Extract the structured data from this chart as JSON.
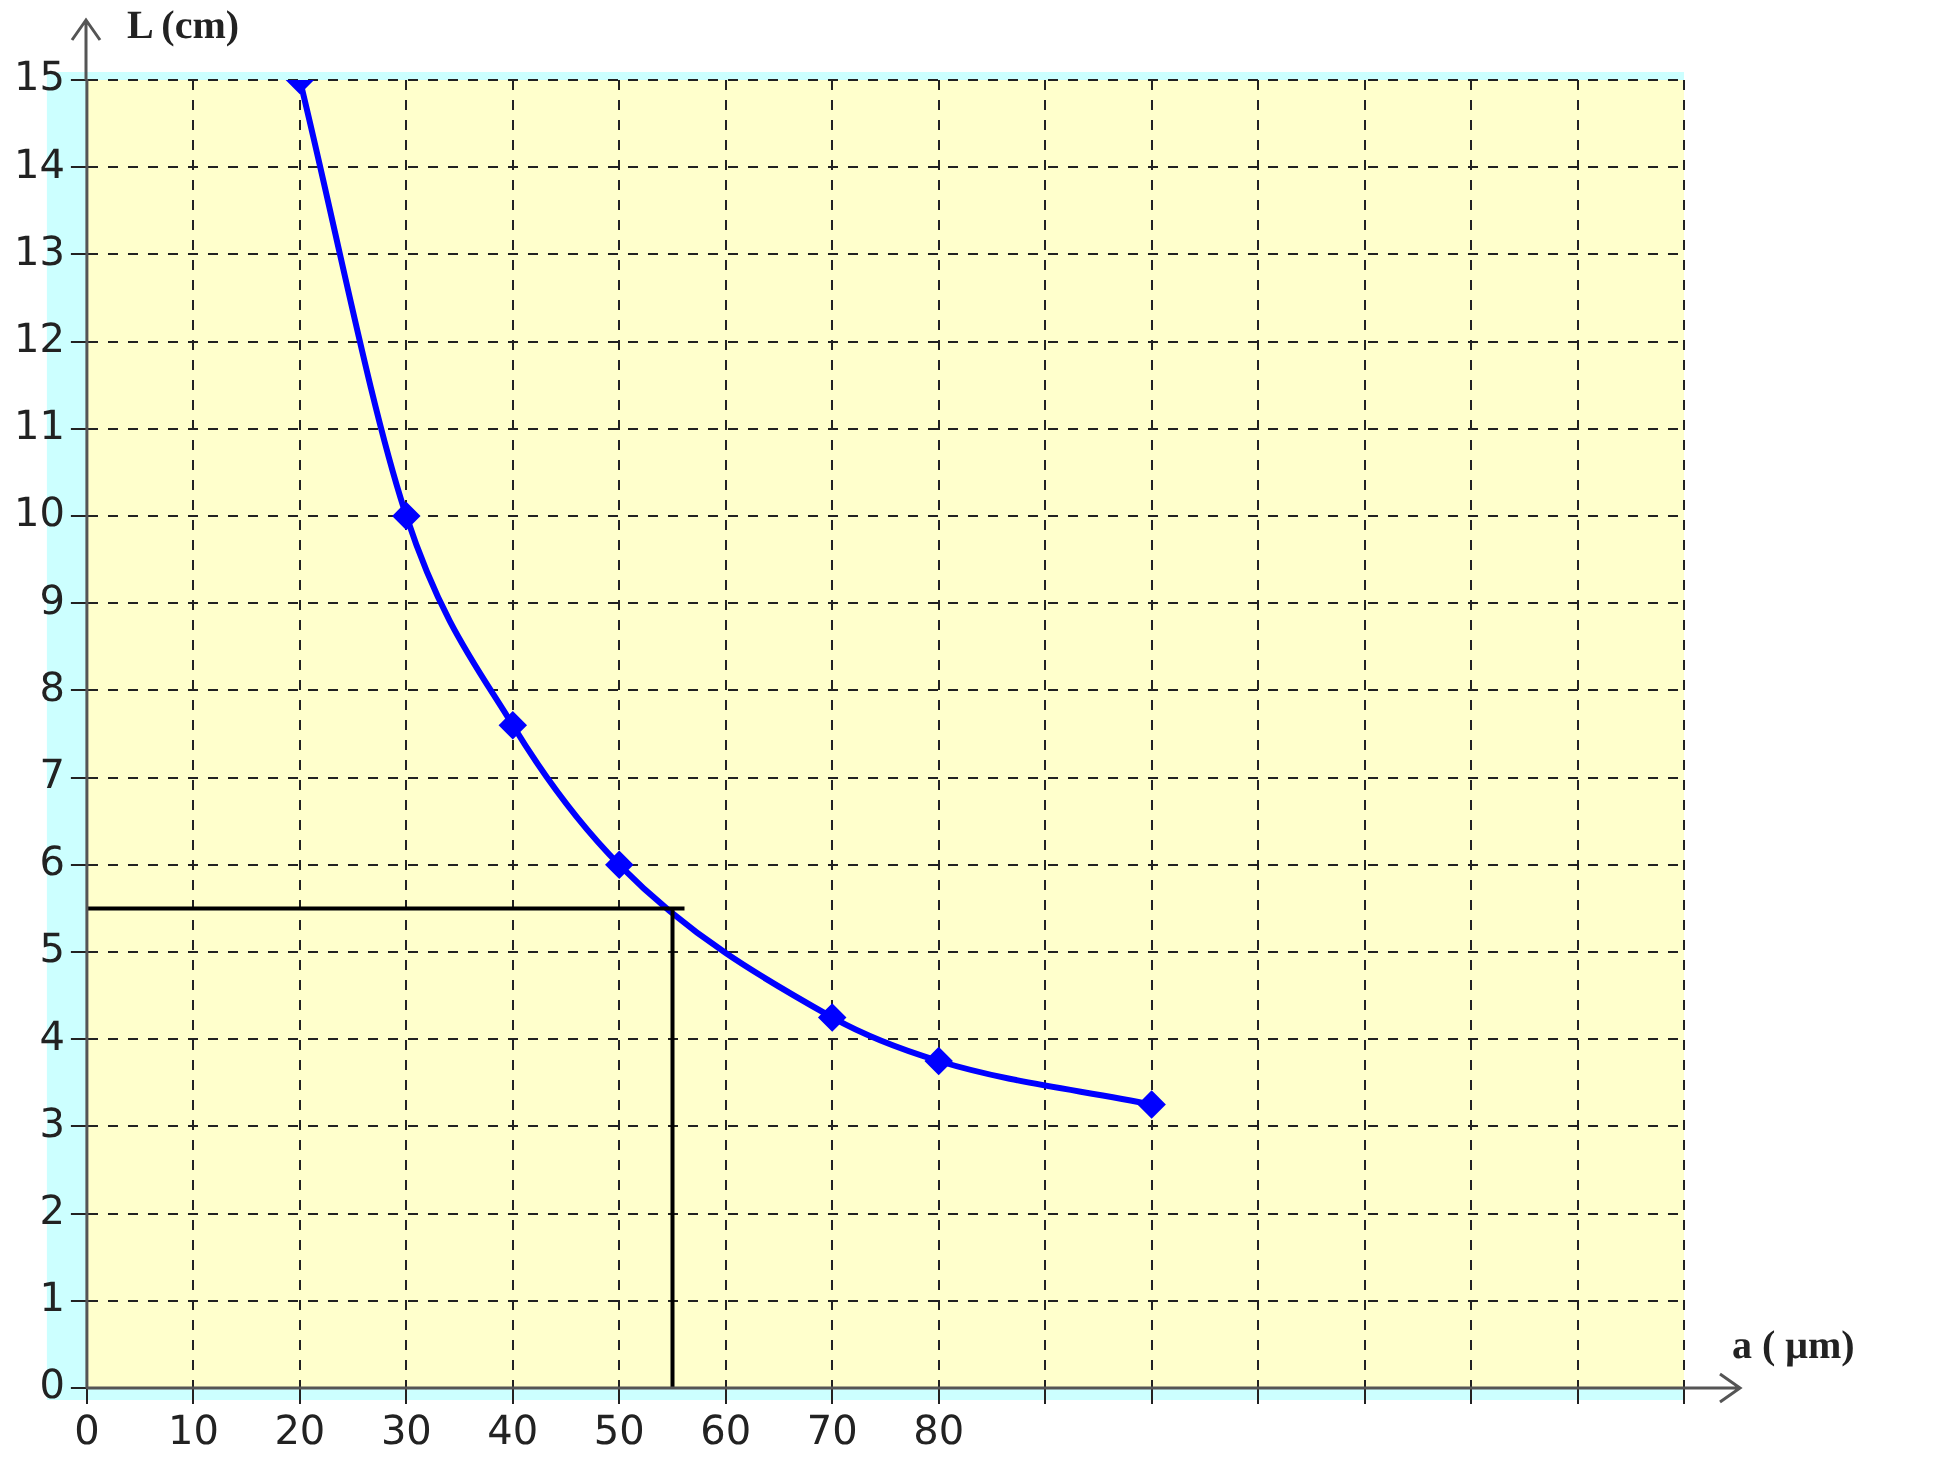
{
  "chart_data": {
    "type": "line",
    "xlabel": "a ( μm)",
    "ylabel": "L (cm)",
    "x": [
      20,
      30,
      40,
      50,
      70,
      80,
      100
    ],
    "series": [
      {
        "color": "#0000ff",
        "values": [
          15,
          10,
          7.6,
          6,
          4.25,
          3.75,
          3.25
        ]
      }
    ],
    "xlim": [
      0,
      150
    ],
    "ylim": [
      0,
      15
    ],
    "xticks": [
      0,
      10,
      20,
      30,
      40,
      50,
      60,
      70,
      80,
      {
        "value": 90,
        "label": null
      },
      {
        "value": 100,
        "label": null
      },
      {
        "value": 110,
        "label": null
      },
      {
        "value": 120,
        "label": null
      },
      {
        "value": 130,
        "label": null
      },
      {
        "value": 140,
        "label": null
      },
      {
        "value": 150,
        "label": null
      }
    ],
    "yticks": [
      0,
      1,
      2,
      3,
      4,
      5,
      6,
      7,
      8,
      9,
      10,
      11,
      12,
      13,
      14,
      15
    ],
    "ref_lines": [
      {
        "axis": "y",
        "value": 5.5,
        "color": "#000000"
      },
      {
        "axis": "x",
        "value": 55,
        "color": "#000000"
      }
    ],
    "grid": true,
    "marker": "diamond",
    "line_style": "solid",
    "legend": false
  }
}
